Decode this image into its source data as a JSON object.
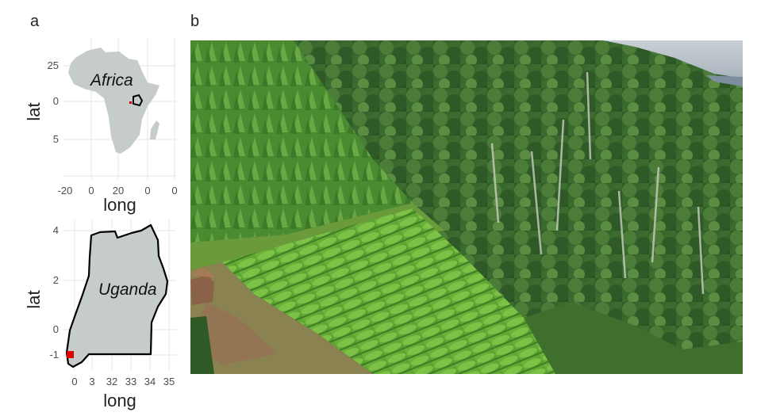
{
  "panels": {
    "a_label": "a",
    "b_label": "b"
  },
  "africa_map": {
    "title": "Africa",
    "xlabel": "long",
    "ylabel": "lat",
    "x_ticks": [
      "-20",
      "0",
      "20",
      "0",
      "0"
    ],
    "y_ticks": [
      "25",
      "0",
      "5"
    ]
  },
  "uganda_map": {
    "title": "Uganda",
    "xlabel": "long",
    "ylabel": "lat",
    "x_ticks": [
      "0",
      "3",
      "32",
      "33",
      "34",
      "35"
    ],
    "y_ticks": [
      "4",
      "2",
      "0",
      "-1"
    ]
  },
  "colors": {
    "panel_background": "#ffffff",
    "grid": "#e6e6e6",
    "land_fill": "#c6cbcb",
    "highlight_marker": "#e00000",
    "outline": "#000000"
  },
  "photo": {
    "subject": "tea plantation on a hillside bordering dense tropical forest"
  }
}
